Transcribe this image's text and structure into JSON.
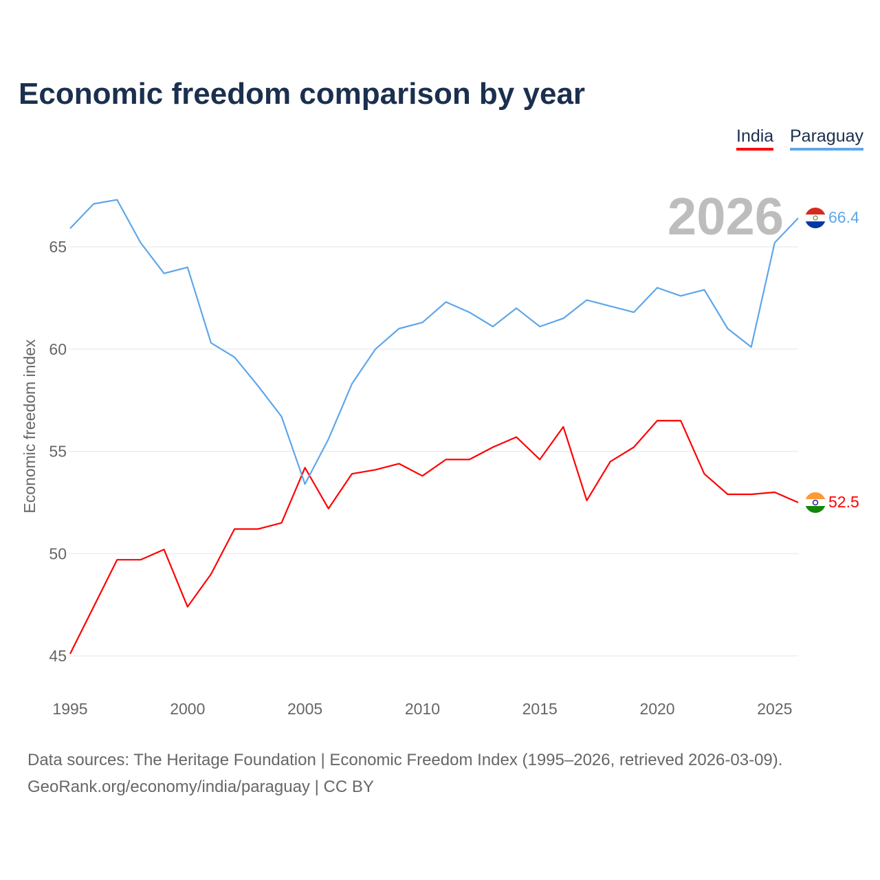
{
  "chart_data": {
    "type": "line",
    "title": "Economic freedom comparison by year",
    "xlabel": "",
    "ylabel": "Economic freedom index",
    "xlim": [
      1995,
      2026
    ],
    "ylim": [
      45,
      67.5
    ],
    "x_ticks": [
      "1995",
      "2000",
      "2005",
      "2010",
      "2015",
      "2020",
      "2025"
    ],
    "y_ticks": [
      "45",
      "50",
      "55",
      "60",
      "65"
    ],
    "grid": true,
    "legend_placement": "top-right",
    "year_label": "2026",
    "x": [
      1995,
      1996,
      1997,
      1998,
      1999,
      2000,
      2001,
      2002,
      2003,
      2004,
      2005,
      2006,
      2007,
      2008,
      2009,
      2010,
      2011,
      2012,
      2013,
      2014,
      2015,
      2016,
      2017,
      2018,
      2019,
      2020,
      2021,
      2022,
      2023,
      2024,
      2025,
      2026
    ],
    "series": [
      {
        "name": "India",
        "color": "#ff0000",
        "end_label": "52.5",
        "values": [
          45.1,
          47.4,
          49.7,
          49.7,
          50.2,
          47.4,
          49.0,
          51.2,
          51.2,
          51.5,
          54.2,
          52.2,
          53.9,
          54.1,
          54.4,
          53.8,
          54.6,
          54.6,
          55.2,
          55.7,
          54.6,
          56.2,
          52.6,
          54.5,
          55.2,
          56.5,
          56.5,
          53.9,
          52.9,
          52.9,
          53.0,
          52.5
        ]
      },
      {
        "name": "Paraguay",
        "color": "#5da6ea",
        "end_label": "66.4",
        "values": [
          65.9,
          67.1,
          67.3,
          65.2,
          63.7,
          64.0,
          60.3,
          59.6,
          58.2,
          56.7,
          53.4,
          55.6,
          58.3,
          60.0,
          61.0,
          61.3,
          62.3,
          61.8,
          61.1,
          62.0,
          61.1,
          61.5,
          62.4,
          62.1,
          61.8,
          63.0,
          62.6,
          62.9,
          61.0,
          60.1,
          65.2,
          66.4
        ]
      }
    ]
  },
  "footer": {
    "line1": "Data sources: The Heritage Foundation | Economic Freedom Index (1995–2026, retrieved 2026-03-09).",
    "line2": "GeoRank.org/economy/india/paraguay | CC BY"
  }
}
